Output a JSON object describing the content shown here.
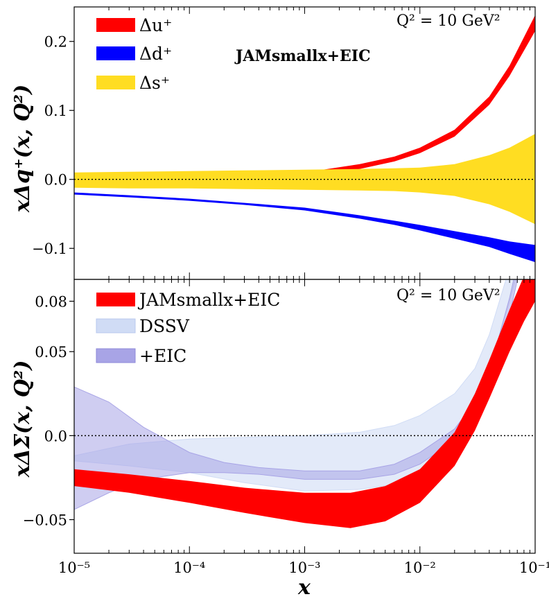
{
  "chart_data": [
    {
      "type": "area",
      "panel": "top",
      "ylabel": "xΔq⁺(x, Q²)",
      "xscale": "log",
      "xlim": [
        1e-05,
        0.1
      ],
      "ylim": [
        -0.145,
        0.25
      ],
      "yticks": [
        -0.1,
        0.0,
        0.1,
        0.2
      ],
      "ytick_labels": [
        "−0.1",
        "0.0",
        "0.1",
        "0.2"
      ],
      "annotations": {
        "q2": "Q² = 10 GeV²",
        "label": "JAMsmallx+EIC"
      },
      "legend": [
        "Δu⁺",
        "Δd⁺",
        "Δs⁺"
      ],
      "series": [
        {
          "name": "Δu⁺",
          "color": "#ff0000",
          "x": [
            1e-05,
            3e-05,
            0.0001,
            0.0003,
            0.001,
            0.003,
            0.006,
            0.01,
            0.02,
            0.04,
            0.06,
            0.1
          ],
          "lower": [
            -0.008,
            -0.007,
            -0.005,
            -0.002,
            0.004,
            0.015,
            0.026,
            0.038,
            0.062,
            0.108,
            0.15,
            0.215
          ],
          "upper": [
            -0.002,
            -0.001,
            0.001,
            0.004,
            0.01,
            0.022,
            0.033,
            0.046,
            0.072,
            0.12,
            0.165,
            0.238
          ]
        },
        {
          "name": "Δd⁺",
          "color": "#0000ff",
          "x": [
            1e-05,
            3e-05,
            0.0001,
            0.0003,
            0.001,
            0.003,
            0.006,
            0.01,
            0.02,
            0.04,
            0.06,
            0.1
          ],
          "lower": [
            -0.022,
            -0.026,
            -0.031,
            -0.037,
            -0.045,
            -0.057,
            -0.066,
            -0.074,
            -0.086,
            -0.098,
            -0.108,
            -0.12
          ],
          "upper": [
            -0.019,
            -0.023,
            -0.028,
            -0.034,
            -0.041,
            -0.052,
            -0.06,
            -0.066,
            -0.075,
            -0.084,
            -0.09,
            -0.095
          ]
        },
        {
          "name": "Δs⁺",
          "color": "#ffdd22",
          "x": [
            1e-05,
            3e-05,
            0.0001,
            0.0003,
            0.001,
            0.003,
            0.006,
            0.01,
            0.02,
            0.04,
            0.06,
            0.1
          ],
          "lower": [
            -0.012,
            -0.013,
            -0.013,
            -0.014,
            -0.015,
            -0.016,
            -0.017,
            -0.019,
            -0.024,
            -0.036,
            -0.047,
            -0.065
          ],
          "upper": [
            0.01,
            0.011,
            0.012,
            0.013,
            0.014,
            0.015,
            0.016,
            0.017,
            0.022,
            0.035,
            0.046,
            0.066
          ]
        }
      ]
    },
    {
      "type": "area",
      "panel": "bottom",
      "xlabel": "x",
      "ylabel": "xΔΣ(x, Q²)",
      "xscale": "log",
      "xlim": [
        1e-05,
        0.1
      ],
      "ylim": [
        -0.07,
        0.093
      ],
      "yticks": [
        -0.05,
        0.0,
        0.05,
        0.08
      ],
      "ytick_labels": [
        "−0.05",
        "0.0",
        "0.05",
        "0.08"
      ],
      "xticks": [
        1e-05,
        0.0001,
        0.001,
        0.01,
        0.1
      ],
      "xtick_labels": [
        "10⁻⁵",
        "10⁻⁴",
        "10⁻³",
        "10⁻²",
        "10⁻¹"
      ],
      "annotations": {
        "q2": "Q² = 10 GeV²"
      },
      "legend": [
        "JAMsmallx+EIC",
        "DSSV",
        "+EIC"
      ],
      "series": [
        {
          "name": "DSSV",
          "color": "#d0dcf5",
          "x": [
            1e-05,
            3e-05,
            0.0001,
            0.0003,
            0.001,
            0.003,
            0.006,
            0.01,
            0.02,
            0.03,
            0.04,
            0.06,
            0.08
          ],
          "lower": [
            -0.015,
            -0.018,
            -0.022,
            -0.028,
            -0.033,
            -0.032,
            -0.029,
            -0.022,
            -0.005,
            0.015,
            0.038,
            0.08,
            0.11
          ],
          "upper": [
            -0.012,
            -0.005,
            -0.002,
            -0.001,
            0.0,
            0.002,
            0.006,
            0.012,
            0.025,
            0.04,
            0.06,
            0.1,
            0.12
          ]
        },
        {
          "name": "+EIC",
          "color": "#a8a4e6",
          "x": [
            1e-05,
            2e-05,
            4e-05,
            0.0001,
            0.0002,
            0.0004,
            0.001,
            0.003,
            0.006,
            0.01,
            0.02,
            0.03,
            0.04,
            0.06,
            0.08
          ],
          "lower": [
            -0.044,
            -0.034,
            -0.026,
            -0.022,
            -0.022,
            -0.023,
            -0.026,
            -0.026,
            -0.023,
            -0.017,
            -0.003,
            0.012,
            0.03,
            0.072,
            0.11
          ],
          "upper": [
            0.029,
            0.02,
            0.005,
            -0.01,
            -0.016,
            -0.019,
            -0.021,
            -0.021,
            -0.017,
            -0.01,
            0.004,
            0.02,
            0.038,
            0.082,
            0.12
          ]
        },
        {
          "name": "JAMsmallx+EIC",
          "color": "#ff0000",
          "x": [
            1e-05,
            3e-05,
            0.0001,
            0.0003,
            0.001,
            0.0025,
            0.005,
            0.01,
            0.02,
            0.03,
            0.04,
            0.06,
            0.08,
            0.1
          ],
          "lower": [
            -0.03,
            -0.034,
            -0.04,
            -0.046,
            -0.052,
            -0.055,
            -0.051,
            -0.04,
            -0.018,
            0.003,
            0.022,
            0.05,
            0.068,
            0.08
          ],
          "upper": [
            -0.02,
            -0.023,
            -0.027,
            -0.031,
            -0.034,
            -0.034,
            -0.03,
            -0.02,
            0.002,
            0.025,
            0.045,
            0.075,
            0.095,
            0.115
          ]
        }
      ]
    }
  ],
  "legend_colors": {
    "jam_text": "#8b1a1a",
    "zero_line": "#000000"
  }
}
